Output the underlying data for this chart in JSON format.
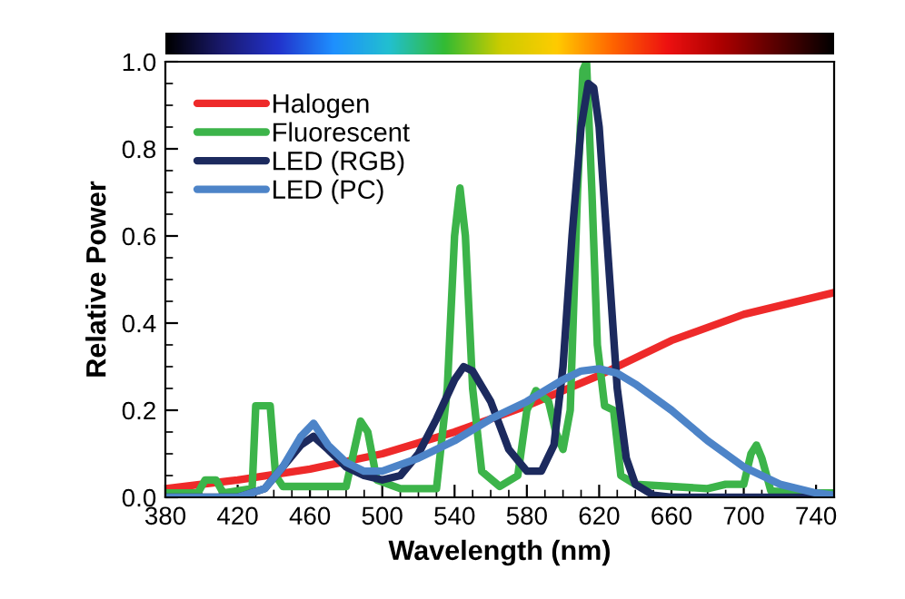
{
  "chart_data": {
    "type": "line",
    "xlabel": "Wavelength (nm)",
    "ylabel": "Relative Power",
    "xlim": [
      380,
      750
    ],
    "xticks": [
      380,
      420,
      460,
      500,
      540,
      580,
      620,
      660,
      700,
      740
    ],
    "ylim": [
      0,
      1.0
    ],
    "yticks": [
      {
        "value": 0,
        "label": "0.0"
      },
      {
        "value": 0.2,
        "label": "0.2"
      },
      {
        "value": 0.4,
        "label": "0.4"
      },
      {
        "value": 0.6,
        "label": "0.6"
      },
      {
        "value": 0.8,
        "label": "0.8"
      },
      {
        "value": 1.0,
        "label": "1.0"
      }
    ],
    "grid": false,
    "legend": "top left",
    "marker": "none",
    "line_style": "solid",
    "series": [
      {
        "name": "Halogen",
        "color": "#ee2a2a",
        "x": [
          380,
          420,
          460,
          500,
          540,
          580,
          620,
          660,
          700,
          750
        ],
        "values": [
          0.02,
          0.04,
          0.065,
          0.1,
          0.15,
          0.21,
          0.28,
          0.36,
          0.42,
          0.47
        ]
      },
      {
        "name": "Fluorescent",
        "color": "#3cb44a",
        "x": [
          380,
          398,
          402,
          408,
          412,
          428,
          430,
          438,
          441,
          445,
          480,
          484,
          488,
          492,
          497,
          510,
          530,
          536,
          540,
          543,
          546,
          550,
          555,
          565,
          575,
          580,
          585,
          592,
          596,
          600,
          604,
          608,
          611,
          613,
          616,
          619,
          623,
          628,
          632,
          640,
          660,
          680,
          690,
          700,
          704,
          707,
          710,
          715,
          730,
          750
        ],
        "values": [
          0.01,
          0.01,
          0.04,
          0.04,
          0.01,
          0.02,
          0.21,
          0.21,
          0.05,
          0.025,
          0.025,
          0.1,
          0.175,
          0.15,
          0.04,
          0.02,
          0.02,
          0.25,
          0.6,
          0.71,
          0.6,
          0.25,
          0.06,
          0.025,
          0.05,
          0.2,
          0.245,
          0.22,
          0.15,
          0.11,
          0.2,
          0.7,
          0.98,
          1.0,
          0.7,
          0.35,
          0.21,
          0.2,
          0.05,
          0.03,
          0.025,
          0.02,
          0.03,
          0.03,
          0.1,
          0.12,
          0.09,
          0.015,
          0.01,
          0.01
        ]
      },
      {
        "name": "LED (RGB)",
        "color": "#1c2a5e",
        "x": [
          380,
          420,
          435,
          445,
          455,
          462,
          470,
          480,
          490,
          500,
          510,
          520,
          530,
          540,
          545,
          550,
          560,
          570,
          580,
          588,
          595,
          600,
          605,
          610,
          614,
          617,
          620,
          625,
          630,
          635,
          640,
          650,
          660,
          700,
          750
        ],
        "values": [
          0,
          0,
          0.02,
          0.07,
          0.12,
          0.14,
          0.11,
          0.07,
          0.05,
          0.04,
          0.05,
          0.1,
          0.18,
          0.27,
          0.3,
          0.29,
          0.22,
          0.11,
          0.06,
          0.06,
          0.12,
          0.3,
          0.6,
          0.85,
          0.95,
          0.94,
          0.85,
          0.55,
          0.25,
          0.09,
          0.03,
          0.005,
          0,
          0,
          0
        ]
      },
      {
        "name": "LED (PC)",
        "color": "#4d84c8",
        "x": [
          380,
          420,
          435,
          445,
          455,
          462,
          470,
          480,
          490,
          500,
          520,
          540,
          560,
          580,
          600,
          610,
          620,
          630,
          640,
          660,
          680,
          700,
          720,
          740,
          750
        ],
        "values": [
          0,
          0,
          0.02,
          0.07,
          0.14,
          0.17,
          0.12,
          0.08,
          0.06,
          0.06,
          0.09,
          0.13,
          0.18,
          0.22,
          0.27,
          0.29,
          0.295,
          0.285,
          0.26,
          0.2,
          0.13,
          0.07,
          0.03,
          0.01,
          0.005
        ]
      }
    ]
  }
}
